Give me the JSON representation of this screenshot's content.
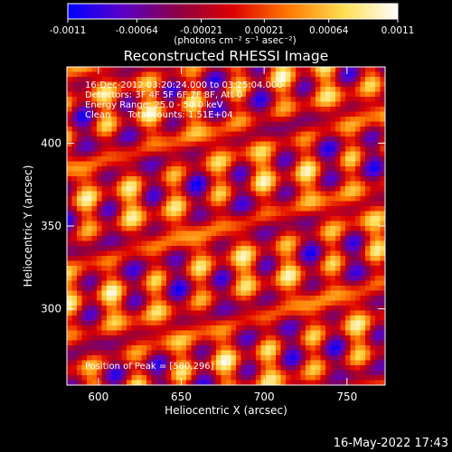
{
  "colorbar": {
    "ticks": [
      "-0.0011",
      "-0.00064",
      "-0.00021",
      "0.00021",
      "0.00064",
      "0.0011"
    ],
    "tick_values": [
      -0.0011,
      -0.00064,
      -0.00021,
      0.00021,
      0.00064,
      0.0011
    ],
    "range": [
      -0.0011,
      0.0011
    ],
    "units_label": "(photons cm⁻² s⁻¹ asec⁻²)",
    "colors": [
      "#0000ff",
      "#5a00c8",
      "#8c0046",
      "#dc0000",
      "#ff7800",
      "#ffdc50",
      "#ffffff"
    ]
  },
  "chart_data": {
    "type": "heatmap",
    "title": "Reconstructed RHESSI Image",
    "xlabel": "Heliocentric X (arcsec)",
    "ylabel": "Heliocentric Y (arcsec)",
    "xlim": [
      581,
      773
    ],
    "ylim": [
      254,
      446
    ],
    "xticks": [
      "600",
      "650",
      "700",
      "750"
    ],
    "xtick_values": [
      600,
      650,
      700,
      750
    ],
    "yticks": [
      "300",
      "350",
      "400"
    ],
    "ytick_values": [
      300,
      350,
      400
    ],
    "annotations": {
      "line1": "16-Dec-2012 03:20:24.000 to 03:25:04.000",
      "line2": "Detectors: 3F 4F 5F 6F 7F 8F, Att 0",
      "line3": "Energy Range: 25.0 - 50.0 keV",
      "line4": "Clean      Total counts: 1.51E+04",
      "peak": "Position of Peak = [580,296]"
    },
    "peak_position": [
      580,
      296
    ],
    "total_counts": 15100,
    "energy_range_kev": [
      25.0,
      50.0
    ],
    "grid": false,
    "colormap": "blue-purple-red-yellow-white"
  },
  "timestamp": "16-May-2022 17:43"
}
